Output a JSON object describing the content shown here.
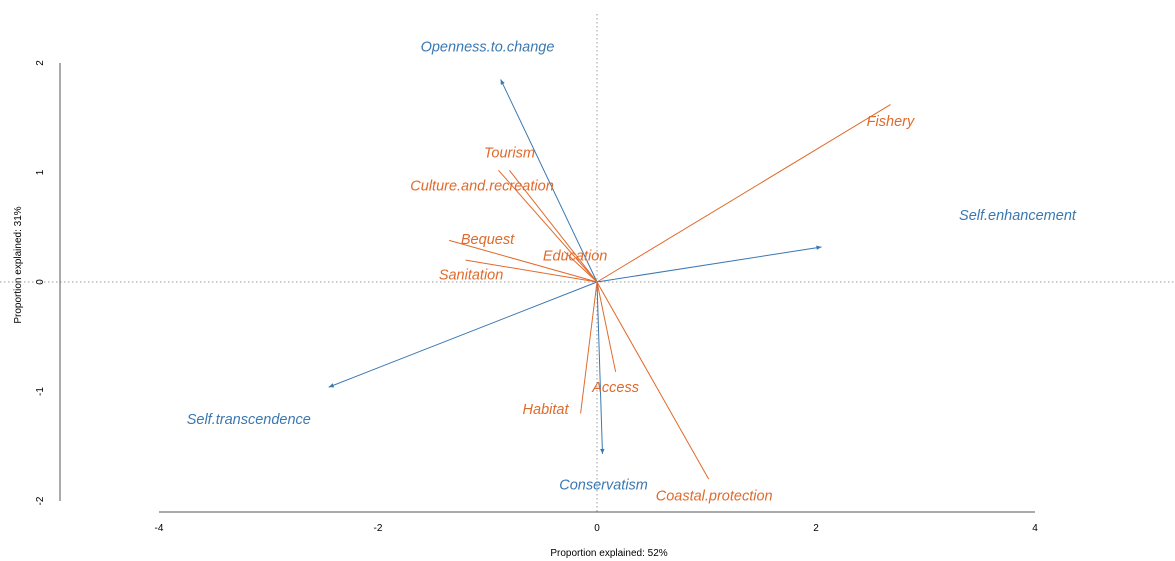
{
  "colors": {
    "values_series": "#3a78b2",
    "services_series": "#e06a2b",
    "axis": "#555555",
    "zero_line": "#999999"
  },
  "chart_data": {
    "type": "biplot",
    "xlabel": "Proportion explained: 52%",
    "ylabel": "Proportion explained: 31%",
    "xlim": [
      -4,
      4
    ],
    "ylim": [
      -2,
      2
    ],
    "x_ticks": [
      -4,
      -2,
      0,
      2,
      4
    ],
    "y_ticks": [
      -2,
      -1,
      0,
      1,
      2
    ],
    "zero_lines": true,
    "series": [
      {
        "color": "#3a78b2",
        "arrowheads": true,
        "vectors": [
          {
            "label": "Openness.to.change",
            "x": -0.88,
            "y": 1.85,
            "lx": -1.0,
            "ly": 2.14
          },
          {
            "label": "Self.enhancement",
            "x": 2.05,
            "y": 0.32,
            "lx": 3.84,
            "ly": 0.6
          },
          {
            "label": "Self.transcendence",
            "x": -2.45,
            "y": -0.96,
            "lx": -3.18,
            "ly": -1.26
          },
          {
            "label": "Conservatism",
            "x": 0.05,
            "y": -1.57,
            "lx": 0.06,
            "ly": -1.86
          }
        ]
      },
      {
        "color": "#e06a2b",
        "arrowheads": false,
        "vectors": [
          {
            "label": "Fishery",
            "x": 2.68,
            "y": 1.62,
            "lx": 2.68,
            "ly": 1.46
          },
          {
            "label": "Tourism",
            "x": -0.8,
            "y": 1.02,
            "lx": -0.8,
            "ly": 1.17
          },
          {
            "label": "Culture.and.recreation",
            "x": -0.9,
            "y": 1.02,
            "lx": -1.05,
            "ly": 0.87
          },
          {
            "label": "Bequest",
            "x": -1.35,
            "y": 0.38,
            "lx": -1.0,
            "ly": 0.38
          },
          {
            "label": "Education",
            "x": -0.3,
            "y": 0.28,
            "lx": -0.2,
            "ly": 0.23
          },
          {
            "label": "Sanitation",
            "x": -1.2,
            "y": 0.2,
            "lx": -1.15,
            "ly": 0.06
          },
          {
            "label": "Access",
            "x": 0.17,
            "y": -0.82,
            "lx": 0.17,
            "ly": -0.97
          },
          {
            "label": "Habitat",
            "x": -0.15,
            "y": -1.2,
            "lx": -0.47,
            "ly": -1.17
          },
          {
            "label": "Coastal.protection",
            "x": 1.02,
            "y": -1.8,
            "lx": 1.07,
            "ly": -1.96
          }
        ]
      }
    ]
  }
}
